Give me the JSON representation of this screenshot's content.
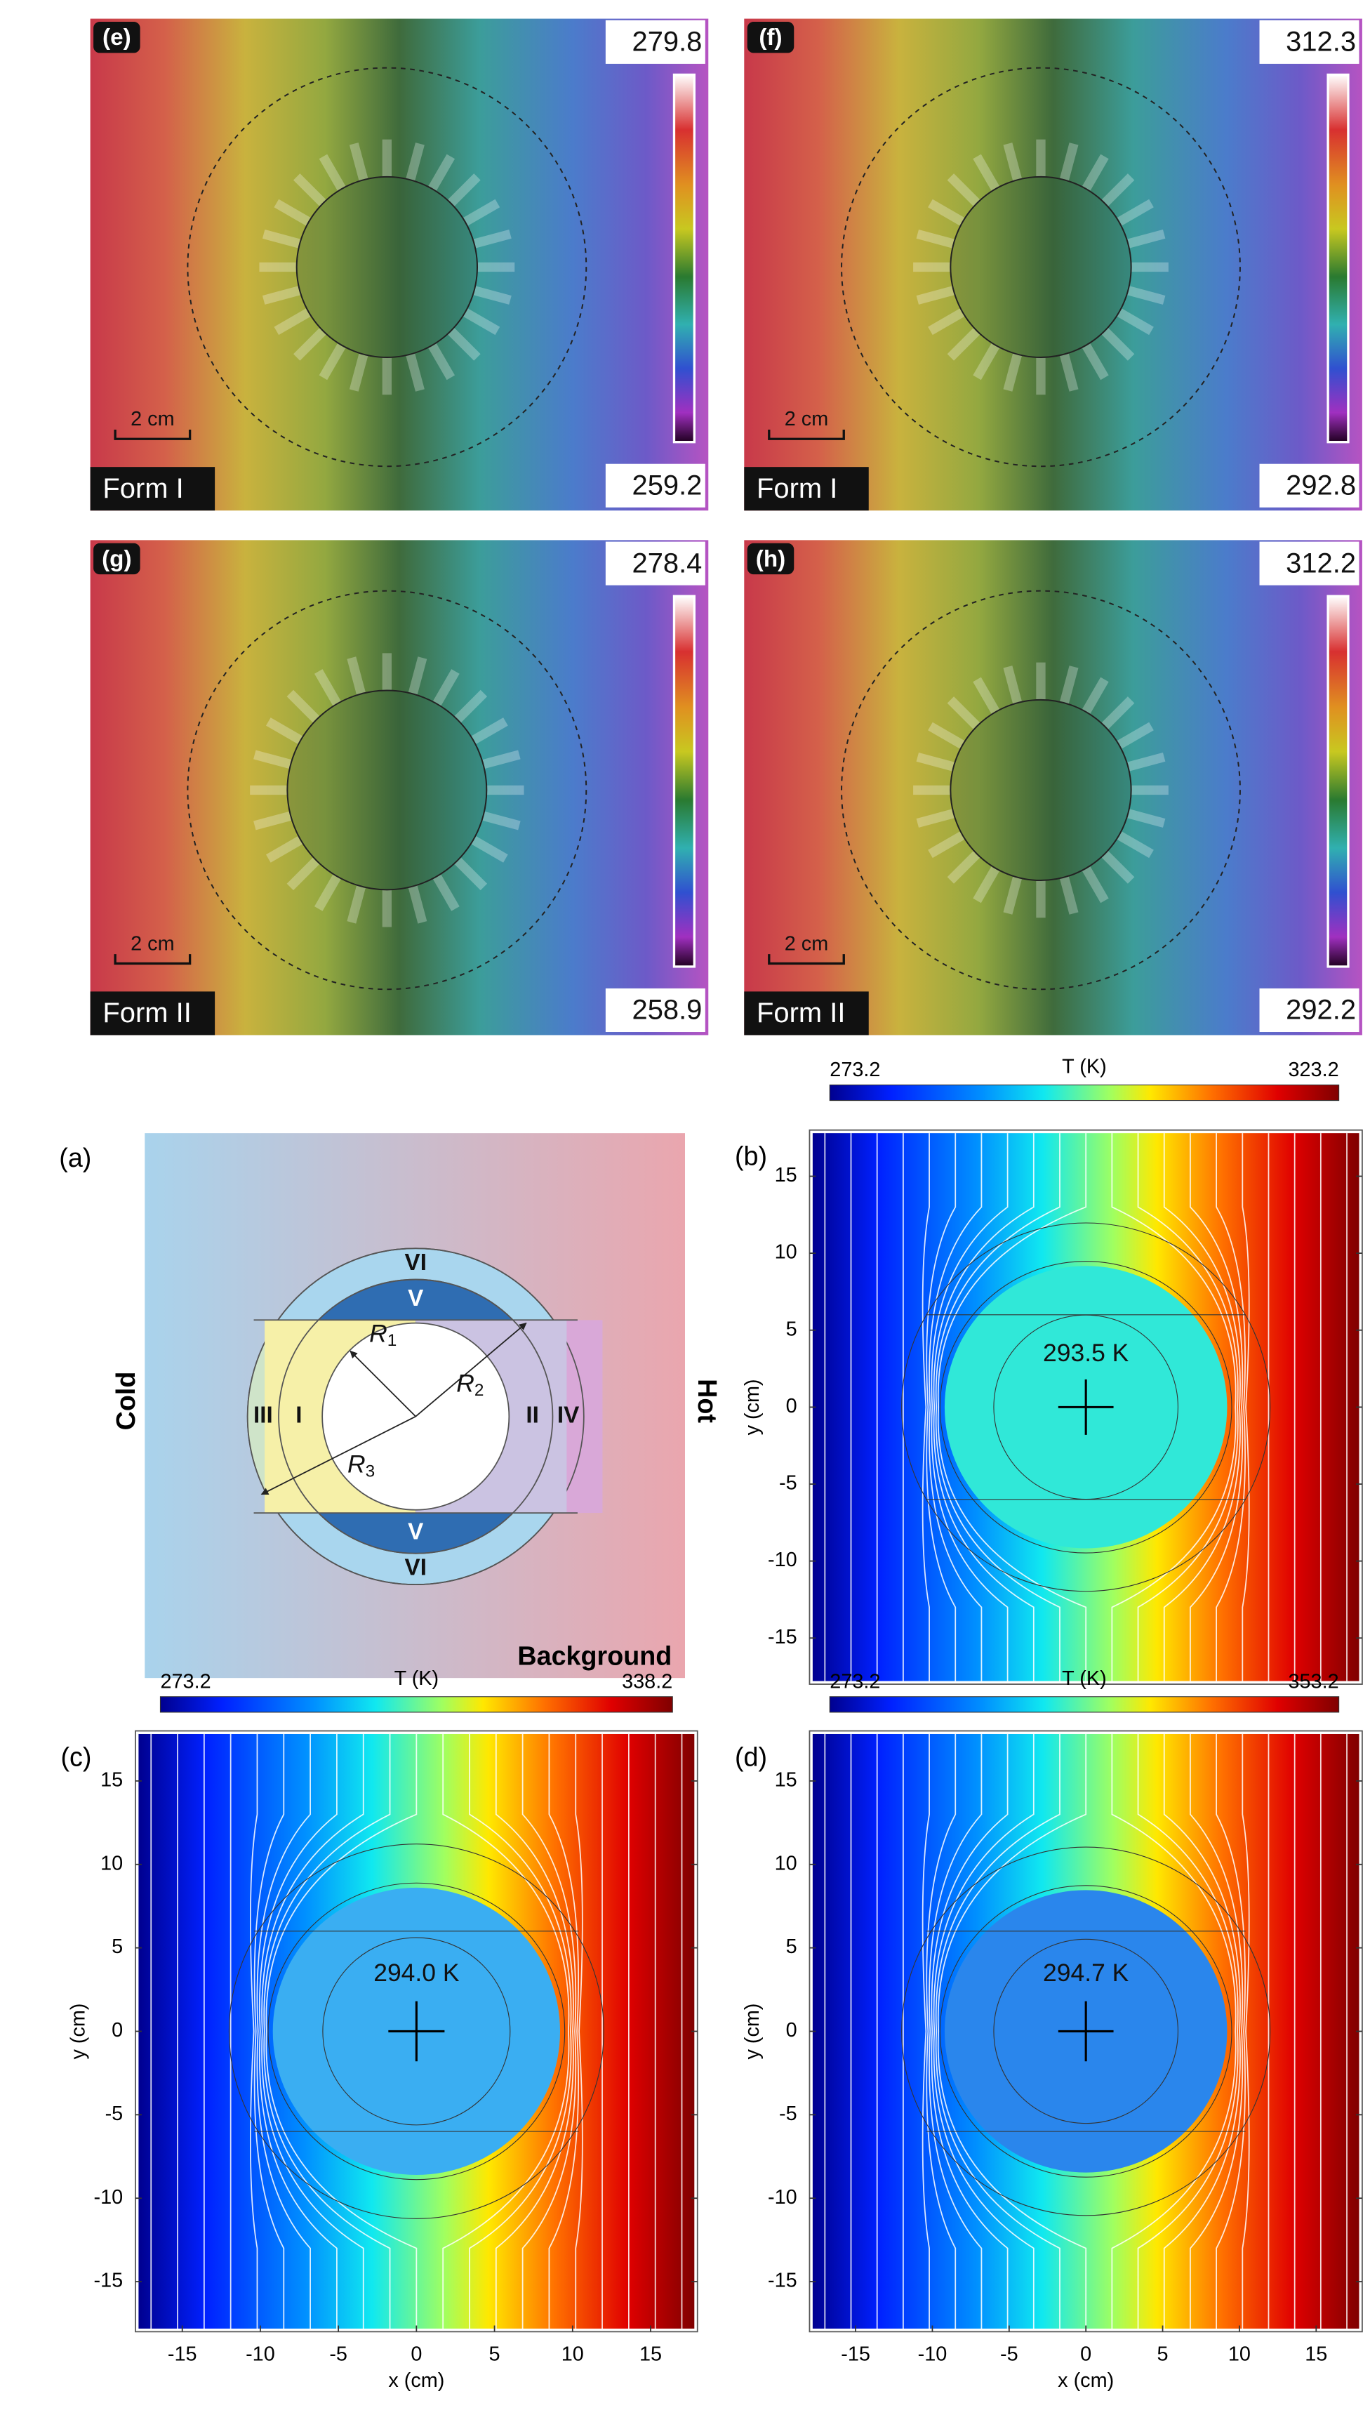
{
  "thermal_panels": [
    {
      "label": "(e)",
      "max": 279.8,
      "min": 259.2,
      "scale": "2 cm",
      "form": "Form I"
    },
    {
      "label": "(f)",
      "max": 312.3,
      "min": 292.8,
      "scale": "2 cm",
      "form": "Form I"
    },
    {
      "label": "(g)",
      "max": 278.4,
      "min": 258.9,
      "scale": "2 cm",
      "form": "Form II"
    },
    {
      "label": "(h)",
      "max": 312.2,
      "min": 292.2,
      "scale": "2 cm",
      "form": "Form II"
    }
  ],
  "schematic": {
    "label": "(a)",
    "cold": "Cold",
    "hot": "Hot",
    "background": "Background",
    "regions": [
      "VI",
      "V",
      "III",
      "I",
      "II",
      "IV",
      "V",
      "VI"
    ],
    "radii": [
      {
        "symbol": "R",
        "subscript": "1"
      },
      {
        "symbol": "R",
        "subscript": "2"
      },
      {
        "symbol": "R",
        "subscript": "3"
      }
    ]
  },
  "contour_plots": [
    {
      "label": "(b)",
      "colorbar": {
        "min": 273.2,
        "max": 323.2,
        "title": "T (K)"
      },
      "center_temp": "293.5 K",
      "center_color": "#30e8d8",
      "xlim": [
        -18,
        18
      ],
      "ylim": [
        -18,
        18
      ],
      "yticks": [
        15,
        10,
        5,
        0,
        -5,
        -10,
        -15
      ],
      "ylabel": "y (cm)"
    },
    {
      "label": "(c)",
      "colorbar": {
        "min": 273.2,
        "max": 338.2,
        "title": "T (K)"
      },
      "center_temp": "294.0 K",
      "center_color": "#3aaef2",
      "xlim": [
        -18,
        18
      ],
      "ylim": [
        -18,
        18
      ],
      "yticks": [
        15,
        10,
        5,
        0,
        -5,
        -10,
        -15
      ],
      "ylabel": "y (cm)",
      "xticks": [
        -15,
        -10,
        -5,
        0,
        5,
        10,
        15
      ],
      "xlabel": "x (cm)"
    },
    {
      "label": "(d)",
      "colorbar": {
        "min": 273.2,
        "max": 353.2,
        "title": "T (K)"
      },
      "center_temp": "294.7 K",
      "center_color": "#2a86ec",
      "xlim": [
        -18,
        18
      ],
      "ylim": [
        -18,
        18
      ],
      "yticks": [
        15,
        10,
        5,
        0,
        -5,
        -10,
        -15
      ],
      "ylabel": "y (cm)",
      "xticks": [
        -15,
        -10,
        -5,
        0,
        5,
        10,
        15
      ],
      "xlabel": "x (cm)"
    }
  ]
}
